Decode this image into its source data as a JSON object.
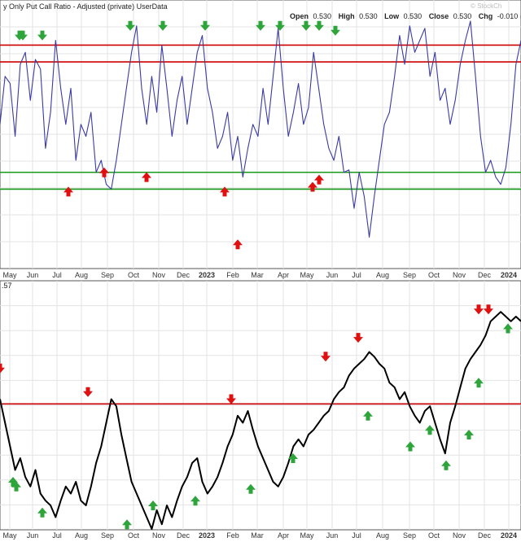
{
  "header": {
    "title": "y Only Put Call Ratio - Adjusted (private) UserData",
    "open_label": "Open",
    "open_value": "0.530",
    "high_label": "High",
    "high_value": "0.530",
    "low_label": "Low",
    "low_value": "0.530",
    "close_label": "Close",
    "close_value": "0.530",
    "chg_label": "Chg",
    "chg_value": "-0.010 (-",
    "watermark": "© StockCh"
  },
  "lower_panel_label": ".57",
  "colors": {
    "ratio_line": "#3b3aa4",
    "price_line": "#000000",
    "threshold_red": "#cc0000",
    "threshold_green": "#1a9a1a",
    "arrow_green": "#2ea53a",
    "arrow_red": "#e01010",
    "grid": "#e3e3e3",
    "border": "#555555"
  },
  "chart_data": [
    {
      "type": "line",
      "title": "y Only Put Call Ratio - Adjusted (private) UserData",
      "x_tick_labels": [
        {
          "label": "May",
          "bold": false
        },
        {
          "label": "Jun",
          "bold": false
        },
        {
          "label": "Jul",
          "bold": false
        },
        {
          "label": "Aug",
          "bold": false
        },
        {
          "label": "Sep",
          "bold": false
        },
        {
          "label": "Oct",
          "bold": false
        },
        {
          "label": "Nov",
          "bold": false
        },
        {
          "label": "Dec",
          "bold": false
        },
        {
          "label": "2023",
          "bold": true
        },
        {
          "label": "Feb",
          "bold": false
        },
        {
          "label": "Mar",
          "bold": false
        },
        {
          "label": "Apr",
          "bold": false
        },
        {
          "label": "May",
          "bold": false
        },
        {
          "label": "Jun",
          "bold": false
        },
        {
          "label": "Jul",
          "bold": false
        },
        {
          "label": "Aug",
          "bold": false
        },
        {
          "label": "Sep",
          "bold": false
        },
        {
          "label": "Oct",
          "bold": false
        },
        {
          "label": "Nov",
          "bold": false
        },
        {
          "label": "Dec",
          "bold": false
        },
        {
          "label": "2024",
          "bold": true
        }
      ],
      "grid": true,
      "ylim": [
        0,
        1
      ],
      "reference_lines": [
        {
          "value": 0.88,
          "color": "red"
        },
        {
          "value": 0.81,
          "color": "red"
        },
        {
          "value": 0.35,
          "color": "green"
        },
        {
          "value": 0.28,
          "color": "green"
        }
      ],
      "series": [
        {
          "values": [
            0.55,
            0.75,
            0.72,
            0.5,
            0.8,
            0.85,
            0.65,
            0.82,
            0.78,
            0.45,
            0.6,
            0.9,
            0.7,
            0.55,
            0.7,
            0.4,
            0.55,
            0.5,
            0.6,
            0.35,
            0.4,
            0.3,
            0.28,
            0.4,
            0.55,
            0.7,
            0.85,
            0.96,
            0.7,
            0.55,
            0.75,
            0.6,
            0.88,
            0.7,
            0.5,
            0.65,
            0.75,
            0.55,
            0.7,
            0.85,
            0.92,
            0.7,
            0.6,
            0.45,
            0.5,
            0.6,
            0.4,
            0.5,
            0.33,
            0.45,
            0.55,
            0.5,
            0.7,
            0.55,
            0.75,
            0.95,
            0.7,
            0.5,
            0.6,
            0.72,
            0.55,
            0.62,
            0.85,
            0.7,
            0.55,
            0.45,
            0.4,
            0.5,
            0.35,
            0.36,
            0.2,
            0.35,
            0.25,
            0.08,
            0.25,
            0.4,
            0.55,
            0.6,
            0.75,
            0.92,
            0.8,
            0.96,
            0.85,
            0.9,
            0.95,
            0.75,
            0.85,
            0.65,
            0.7,
            0.55,
            0.65,
            0.8,
            0.9,
            0.98,
            0.75,
            0.5,
            0.35,
            0.4,
            0.33,
            0.3,
            0.37,
            0.55,
            0.8,
            0.9
          ]
        }
      ],
      "signals": {
        "green_down": [
          {
            "x": 6,
            "y": 0.92
          },
          {
            "x": 7,
            "y": 0.92
          },
          {
            "x": 13,
            "y": 0.92
          },
          {
            "x": 40,
            "y": 0.96
          },
          {
            "x": 50,
            "y": 0.96
          },
          {
            "x": 63,
            "y": 0.96
          },
          {
            "x": 80,
            "y": 0.96
          },
          {
            "x": 86,
            "y": 0.96
          },
          {
            "x": 94,
            "y": 0.96
          },
          {
            "x": 98,
            "y": 0.96
          },
          {
            "x": 103,
            "y": 0.94
          }
        ],
        "red_up": [
          {
            "x": 21,
            "y": 0.27
          },
          {
            "x": 32,
            "y": 0.35
          },
          {
            "x": 45,
            "y": 0.33
          },
          {
            "x": 69,
            "y": 0.27
          },
          {
            "x": 73,
            "y": 0.05
          },
          {
            "x": 96,
            "y": 0.29
          },
          {
            "x": 98,
            "y": 0.32
          }
        ]
      }
    },
    {
      "type": "line",
      "x_tick_labels": [
        {
          "label": "May",
          "bold": false
        },
        {
          "label": "Jun",
          "bold": false
        },
        {
          "label": "Jul",
          "bold": false
        },
        {
          "label": "Aug",
          "bold": false
        },
        {
          "label": "Sep",
          "bold": false
        },
        {
          "label": "Oct",
          "bold": false
        },
        {
          "label": "Nov",
          "bold": false
        },
        {
          "label": "Dec",
          "bold": false
        },
        {
          "label": "2023",
          "bold": true
        },
        {
          "label": "Feb",
          "bold": false
        },
        {
          "label": "Mar",
          "bold": false
        },
        {
          "label": "Apr",
          "bold": false
        },
        {
          "label": "May",
          "bold": false
        },
        {
          "label": "Jun",
          "bold": false
        },
        {
          "label": "Jul",
          "bold": false
        },
        {
          "label": "Aug",
          "bold": false
        },
        {
          "label": "Sep",
          "bold": false
        },
        {
          "label": "Oct",
          "bold": false
        },
        {
          "label": "Nov",
          "bold": false
        },
        {
          "label": "Dec",
          "bold": false
        },
        {
          "label": "2024",
          "bold": true
        }
      ],
      "grid": true,
      "ylim": [
        0,
        1
      ],
      "reference_lines": [
        {
          "value": 0.53,
          "color": "red"
        }
      ],
      "series": [
        {
          "values": [
            0.55,
            0.45,
            0.35,
            0.25,
            0.3,
            0.22,
            0.18,
            0.25,
            0.15,
            0.12,
            0.1,
            0.05,
            0.12,
            0.18,
            0.15,
            0.2,
            0.12,
            0.1,
            0.18,
            0.28,
            0.35,
            0.45,
            0.55,
            0.52,
            0.4,
            0.3,
            0.2,
            0.15,
            0.1,
            0.05,
            0.0,
            0.08,
            0.02,
            0.1,
            0.05,
            0.12,
            0.18,
            0.22,
            0.28,
            0.3,
            0.2,
            0.15,
            0.18,
            0.22,
            0.28,
            0.35,
            0.4,
            0.48,
            0.45,
            0.5,
            0.42,
            0.35,
            0.3,
            0.25,
            0.2,
            0.18,
            0.22,
            0.28,
            0.35,
            0.38,
            0.35,
            0.4,
            0.42,
            0.45,
            0.48,
            0.5,
            0.55,
            0.58,
            0.6,
            0.65,
            0.68,
            0.7,
            0.72,
            0.75,
            0.73,
            0.7,
            0.68,
            0.62,
            0.6,
            0.55,
            0.58,
            0.52,
            0.48,
            0.45,
            0.5,
            0.52,
            0.45,
            0.38,
            0.32,
            0.45,
            0.52,
            0.6,
            0.68,
            0.72,
            0.75,
            0.78,
            0.82,
            0.88,
            0.9,
            0.92,
            0.9,
            0.88,
            0.9,
            0.88
          ]
        }
      ],
      "signals": {
        "green_up": [
          {
            "x": 4,
            "y": 0.2
          },
          {
            "x": 5,
            "y": 0.18
          },
          {
            "x": 13,
            "y": 0.07
          },
          {
            "x": 39,
            "y": 0.02
          },
          {
            "x": 47,
            "y": 0.1
          },
          {
            "x": 60,
            "y": 0.12
          },
          {
            "x": 77,
            "y": 0.17
          },
          {
            "x": 90,
            "y": 0.3
          },
          {
            "x": 113,
            "y": 0.48
          },
          {
            "x": 126,
            "y": 0.35
          },
          {
            "x": 132,
            "y": 0.42
          },
          {
            "x": 137,
            "y": 0.27
          },
          {
            "x": 144,
            "y": 0.4
          },
          {
            "x": 147,
            "y": 0.62
          },
          {
            "x": 156,
            "y": 0.85
          }
        ],
        "red_down": [
          {
            "x": 0,
            "y": 0.68
          },
          {
            "x": 27,
            "y": 0.58
          },
          {
            "x": 71,
            "y": 0.55
          },
          {
            "x": 100,
            "y": 0.73
          },
          {
            "x": 110,
            "y": 0.81
          },
          {
            "x": 147,
            "y": 0.93
          },
          {
            "x": 150,
            "y": 0.93
          }
        ]
      }
    }
  ]
}
